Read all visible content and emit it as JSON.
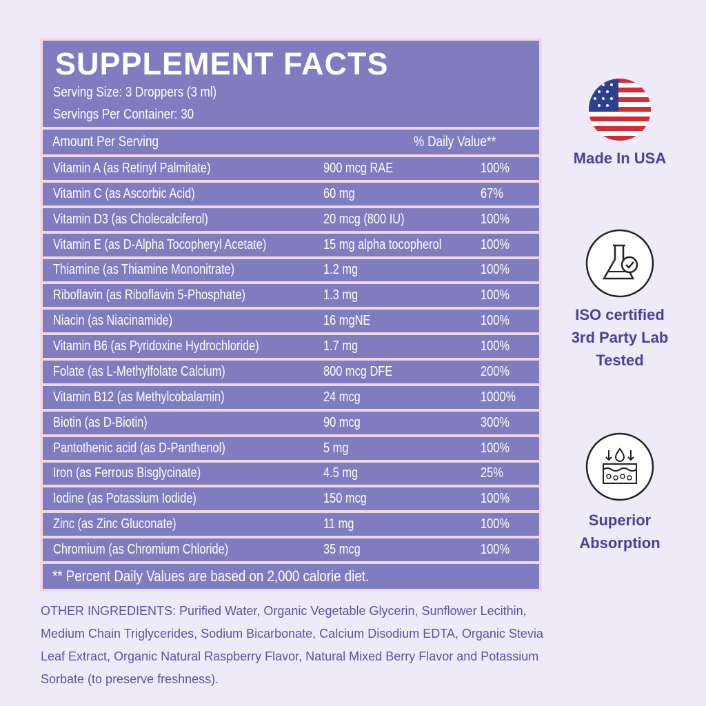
{
  "panel": {
    "title": "SUPPLEMENT FACTS",
    "serving_size": "Serving Size: 3 Droppers (3 ml)",
    "servings_per_container": "Servings Per Container: 30",
    "header": {
      "amount": "Amount Per Serving",
      "daily_value": "% Daily Value**"
    },
    "rows": [
      [
        "Vitamin A (as Retinyl Palmitate)",
        "900 mcg RAE",
        "100%"
      ],
      [
        "Vitamin C (as Ascorbic Acid)",
        "60 mg",
        "67%"
      ],
      [
        "Vitamin D3 (as Cholecalciferol)",
        "20 mcg (800 IU)",
        "100%"
      ],
      [
        "Vitamin E (as D-Alpha Tocopheryl Acetate)",
        "15 mg alpha tocopherol",
        "100%"
      ],
      [
        "Thiamine (as Thiamine Mononitrate)",
        "1.2 mg",
        "100%"
      ],
      [
        "Riboflavin (as Riboflavin 5-Phosphate)",
        "1.3 mg",
        "100%"
      ],
      [
        "Niacin (as Niacinamide)",
        "16 mgNE",
        "100%"
      ],
      [
        "Vitamin B6 (as Pyridoxine Hydrochloride)",
        "1.7 mg",
        "100%"
      ],
      [
        "Folate (as L-Methylfolate Calcium)",
        "800 mcg DFE",
        "200%"
      ],
      [
        "Vitamin B12 (as Methylcobalamin)",
        "24 mcg",
        "1000%"
      ],
      [
        "Biotin (as D-Biotin)",
        "90 mcg",
        "300%"
      ],
      [
        "Pantothenic acid (as D-Panthenol)",
        "5 mg",
        "100%"
      ],
      [
        "Iron (as Ferrous Bisglycinate)",
        "4.5 mg",
        "25%"
      ],
      [
        "Iodine (as Potassium Iodide)",
        "150 mcg",
        "100%"
      ],
      [
        "Zinc (as Zinc Gluconate)",
        "11 mg",
        "100%"
      ],
      [
        "Chromium (as Chromium Chloride)",
        "35 mcg",
        "100%"
      ]
    ],
    "footnote": "** Percent Daily Values are based on 2,000 calorie diet."
  },
  "other_ingredients": "OTHER INGREDIENTS: Purified Water, Organic Vegetable Glycerin, Sunflower Lecithin, Medium Chain Triglycerides, Sodium Bicarbonate, Calcium Disodium EDTA, Organic Stevia Leaf Extract, Organic Natural Raspberry Flavor, Natural Mixed Berry Flavor and Potassium Sorbate (to preserve freshness).",
  "badges": [
    {
      "lines": [
        "Made In USA"
      ]
    },
    {
      "lines": [
        "ISO certified",
        "3rd Party Lab",
        "Tested"
      ]
    },
    {
      "lines": [
        "Superior",
        "Absorption"
      ]
    }
  ]
}
